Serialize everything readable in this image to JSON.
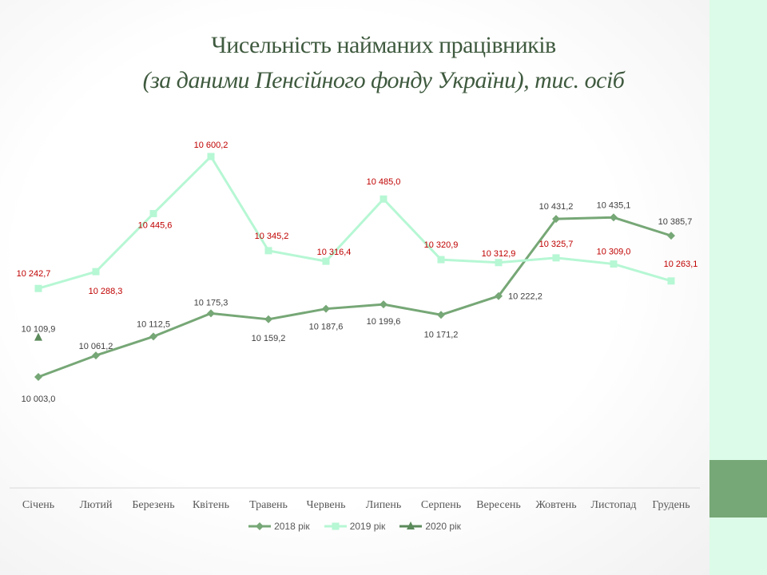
{
  "slide": {
    "title_line1": "Чисельність найманих працівників",
    "title_line2": "(за даними Пенсійного фонду України), тис. осіб",
    "accent_light": "#dcfbe8",
    "accent_dark": "#76a776"
  },
  "chart_data": {
    "type": "line",
    "categories": [
      "Січень",
      "Лютий",
      "Березень",
      "Квітень",
      "Травень",
      "Червень",
      "Липень",
      "Серпень",
      "Вересень",
      "Жовтень",
      "Листопад",
      "Грудень"
    ],
    "series": [
      {
        "name": "2018 рік",
        "color": "#76a776",
        "marker": "diamond",
        "label_color": "#404040",
        "values": [
          10003.0,
          10061.2,
          10112.5,
          10175.3,
          10159.2,
          10187.6,
          10199.6,
          10171.2,
          10222.2,
          10431.2,
          10435.1,
          10385.7
        ],
        "labels": [
          "10 003,0",
          "10 061,2",
          "10 112,5",
          "10 175,3",
          "10 159,2",
          "10 187,6",
          "10 199,6",
          "10 171,2",
          "10 222,2",
          "10 431,2",
          "10 435,1",
          "10 385,7"
        ]
      },
      {
        "name": "2019 рік",
        "color": "#b6f7d4",
        "marker": "square",
        "label_color": "#c00000",
        "values": [
          10242.7,
          10288.3,
          10445.6,
          10600.2,
          10345.2,
          10316.4,
          10485.0,
          10320.9,
          10312.9,
          10325.7,
          10309.0,
          10263.1
        ],
        "labels": [
          "10 242,7",
          "10 288,3",
          "10 445,6",
          "10 600,2",
          "10 345,2",
          "10 316,4",
          "10 485,0",
          "10 320,9",
          "10 312,9",
          "10 325,7",
          "10 309,0",
          "10 263,1"
        ]
      },
      {
        "name": "2020 рік",
        "color": "#5b8a5b",
        "marker": "triangle",
        "label_color": "#404040",
        "values": [
          10109.9,
          null,
          null,
          null,
          null,
          null,
          null,
          null,
          null,
          null,
          null,
          null
        ],
        "labels": [
          "10 109,9",
          "",
          "",
          "",
          "",
          "",
          "",
          "",
          "",
          "",
          "",
          ""
        ]
      }
    ],
    "legend_position": "bottom",
    "grid": false,
    "ylim": [
      9700,
      10650
    ]
  }
}
